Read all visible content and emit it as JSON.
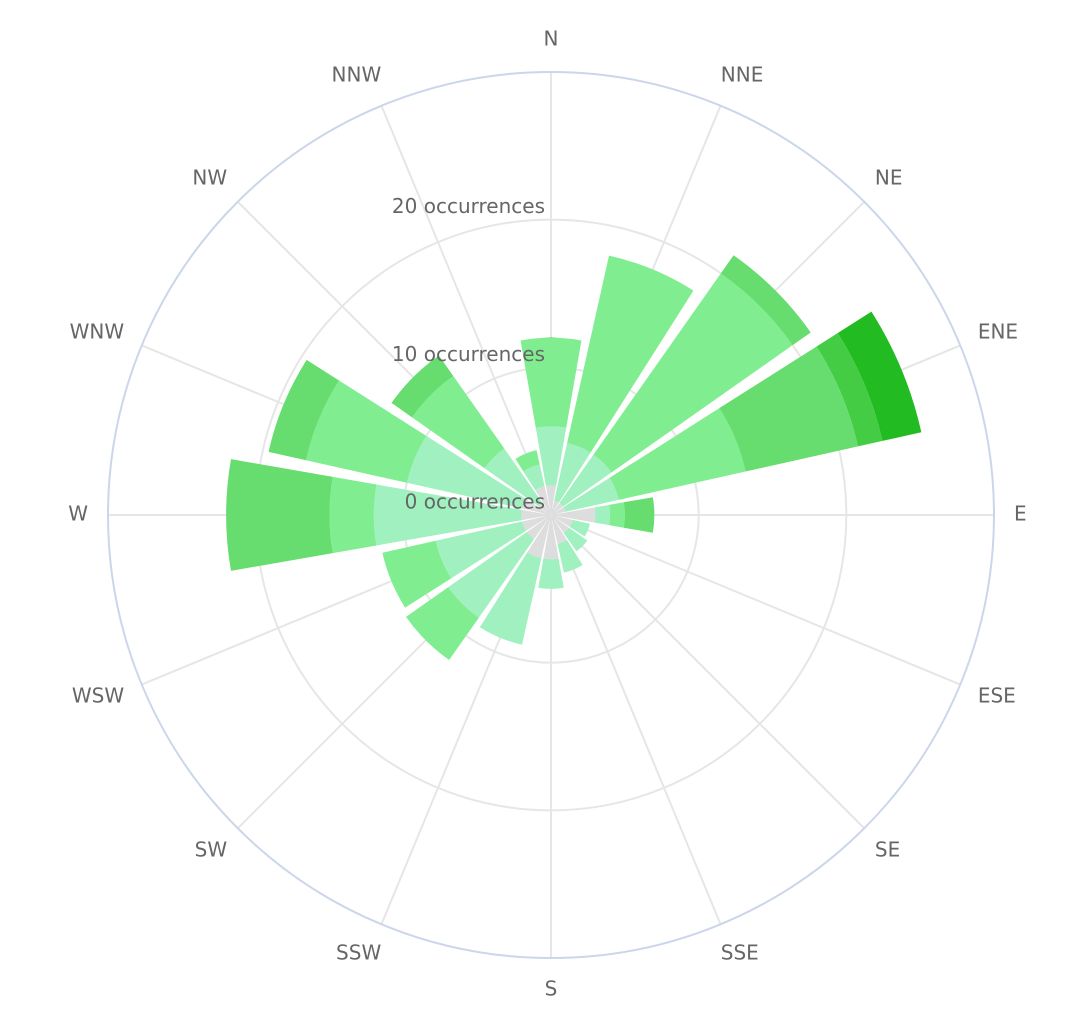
{
  "chart_data": {
    "type": "windrose",
    "categories": [
      "N",
      "NNE",
      "NE",
      "ENE",
      "E",
      "ESE",
      "SE",
      "SSE",
      "S",
      "SSW",
      "SW",
      "WSW",
      "W",
      "WNW",
      "NW",
      "NNW"
    ],
    "series": [
      {
        "color": "#dddddd",
        "values": [
          2,
          1,
          1,
          1,
          3,
          1.5,
          1.5,
          2,
          3,
          3,
          2,
          2,
          2,
          2,
          1,
          2
        ]
      },
      {
        "color": "#a0f0c0",
        "values": [
          4,
          4,
          4,
          3.7,
          1,
          1.2,
          1.5,
          2,
          2,
          6,
          6.5,
          6,
          10,
          8,
          4.5,
          1.5
        ]
      },
      {
        "color": "#80ee90",
        "values": [
          6,
          13,
          15,
          8.8,
          1,
          0,
          0,
          0,
          0,
          0,
          3.5,
          3.7,
          3,
          7,
          6,
          1
        ]
      },
      {
        "color": "#66dd6e",
        "values": [
          0,
          0,
          1.5,
          7.8,
          2,
          0,
          0,
          0,
          0,
          0,
          0,
          0,
          7,
          2.6,
          1.7,
          0
        ]
      },
      {
        "color": "#44cc44",
        "values": [
          0,
          0,
          0,
          1.7,
          0,
          0,
          0,
          0,
          0,
          0,
          0,
          0,
          0,
          0,
          0,
          0
        ]
      },
      {
        "color": "#22bb22",
        "values": [
          0,
          0,
          0,
          2.7,
          0,
          0,
          0,
          0,
          0,
          0,
          0,
          0,
          0,
          0,
          0,
          0
        ]
      }
    ],
    "ylim": [
      0,
      30
    ],
    "yticks": [
      {
        "value": 0,
        "label": "0 occurrences"
      },
      {
        "value": 10,
        "label": "10 occurrences"
      },
      {
        "value": 20,
        "label": "20 occurrences"
      }
    ],
    "grid": true
  }
}
